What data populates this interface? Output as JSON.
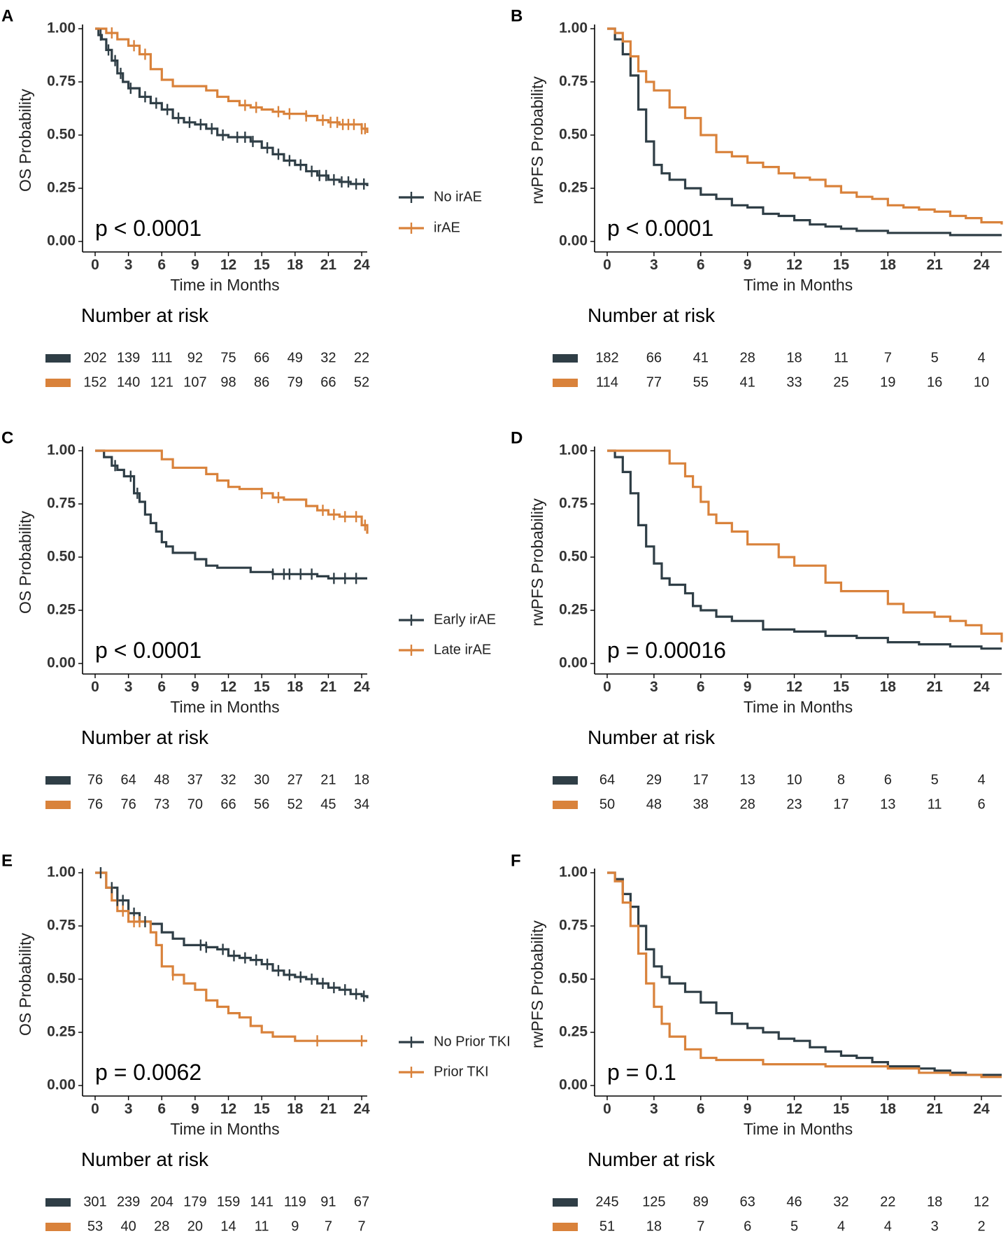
{
  "figure": {
    "colors": {
      "series1": "#2f3e46",
      "series2": "#d9823b",
      "axis": "#000000",
      "text": "#222222",
      "tick_text": "#333333"
    },
    "x_axis_label": "Time in Months",
    "risk_table_title": "Number at risk",
    "x_ticks": [
      0,
      3,
      6,
      9,
      12,
      15,
      18,
      21,
      24
    ],
    "y_ticks": [
      "0.00",
      "0.25",
      "0.50",
      "0.75",
      "1.00"
    ]
  },
  "chart_data": [
    {
      "panel": "A",
      "type": "line",
      "title": "",
      "xlabel": "Time in Months",
      "ylabel": "OS Probability",
      "xlim": [
        0,
        24.5
      ],
      "ylim": [
        0,
        1
      ],
      "pvalue": "p < 0.0001",
      "legend": [
        "No irAE",
        "irAE"
      ],
      "series": [
        {
          "name": "No irAE",
          "x": [
            0,
            0.3,
            0.6,
            1,
            1.5,
            2,
            2.5,
            3,
            4,
            5,
            6,
            7,
            8,
            9,
            10,
            11,
            12,
            13,
            14,
            15,
            16,
            17,
            18,
            19,
            20,
            21,
            22,
            23,
            24,
            24.5
          ],
          "y": [
            1,
            0.97,
            0.95,
            0.9,
            0.85,
            0.79,
            0.75,
            0.72,
            0.68,
            0.65,
            0.62,
            0.58,
            0.56,
            0.55,
            0.53,
            0.5,
            0.49,
            0.49,
            0.47,
            0.44,
            0.41,
            0.38,
            0.36,
            0.33,
            0.31,
            0.29,
            0.28,
            0.27,
            0.27,
            0.26
          ]
        },
        {
          "name": "irAE",
          "x": [
            0,
            1,
            2,
            3,
            4,
            5,
            6,
            7,
            8,
            9,
            10,
            11,
            12,
            13,
            14,
            15,
            16,
            17,
            18,
            19,
            20,
            21,
            22,
            23,
            24,
            24.5
          ],
          "y": [
            1,
            0.98,
            0.95,
            0.92,
            0.88,
            0.81,
            0.76,
            0.73,
            0.73,
            0.73,
            0.71,
            0.68,
            0.66,
            0.64,
            0.63,
            0.62,
            0.61,
            0.6,
            0.6,
            0.59,
            0.57,
            0.56,
            0.55,
            0.55,
            0.53,
            0.51
          ]
        }
      ],
      "censor": [
        {
          "series": "No irAE",
          "x": [
            0.5,
            1.2,
            1.8,
            2.3,
            3.2,
            4.5,
            5.5,
            6.5,
            7.5,
            8.5,
            9.5,
            10.5,
            11.5,
            12.8,
            13.5,
            14.2,
            15.5,
            16.5,
            17.5,
            18.5,
            19.5,
            20.2,
            20.8,
            21.5,
            22.2,
            22.8,
            23.5,
            24.2
          ]
        },
        {
          "series": "irAE",
          "x": [
            1.5,
            3.5,
            4.5,
            13.5,
            14.5,
            16.5,
            17.5,
            19,
            20.5,
            21.2,
            21.8,
            22.3,
            22.8,
            23.3,
            24,
            24.3
          ]
        }
      ],
      "risk": {
        "No irAE": [
          202,
          139,
          111,
          92,
          75,
          66,
          49,
          32,
          22
        ],
        "irAE": [
          152,
          140,
          121,
          107,
          98,
          86,
          79,
          66,
          52
        ]
      }
    },
    {
      "panel": "B",
      "type": "line",
      "title": "",
      "xlabel": "Time in Months",
      "ylabel": "rwPFS Probability",
      "xlim": [
        0,
        25.3
      ],
      "ylim": [
        0,
        1
      ],
      "pvalue": "p < 0.0001",
      "legend": [],
      "series": [
        {
          "name": "No irAE",
          "x": [
            0,
            0.5,
            1,
            1.5,
            2,
            2.5,
            3,
            3.5,
            4,
            5,
            6,
            7,
            8,
            9,
            10,
            11,
            12,
            13,
            14,
            15,
            16,
            17,
            18,
            20,
            22,
            24,
            25.3
          ],
          "y": [
            1,
            0.95,
            0.88,
            0.78,
            0.62,
            0.47,
            0.36,
            0.32,
            0.29,
            0.25,
            0.22,
            0.2,
            0.17,
            0.16,
            0.13,
            0.12,
            0.1,
            0.08,
            0.07,
            0.06,
            0.05,
            0.05,
            0.04,
            0.04,
            0.03,
            0.03,
            0.03
          ]
        },
        {
          "name": "irAE",
          "x": [
            0,
            0.5,
            1,
            1.5,
            2,
            2.5,
            3,
            4,
            5,
            6,
            7,
            8,
            9,
            10,
            11,
            12,
            13,
            14,
            15,
            16,
            17,
            18,
            19,
            20,
            21,
            22,
            23,
            24,
            25.3
          ],
          "y": [
            1,
            0.98,
            0.94,
            0.87,
            0.8,
            0.75,
            0.71,
            0.63,
            0.58,
            0.5,
            0.42,
            0.4,
            0.37,
            0.35,
            0.32,
            0.3,
            0.29,
            0.26,
            0.23,
            0.21,
            0.2,
            0.17,
            0.16,
            0.15,
            0.14,
            0.12,
            0.11,
            0.09,
            0.08
          ]
        }
      ],
      "risk": {
        "No irAE": [
          182,
          66,
          41,
          28,
          18,
          11,
          7,
          5,
          4
        ],
        "irAE": [
          114,
          77,
          55,
          41,
          33,
          25,
          19,
          16,
          10
        ]
      }
    },
    {
      "panel": "C",
      "type": "line",
      "title": "",
      "xlabel": "Time in Months",
      "ylabel": "OS Probability",
      "xlim": [
        0,
        24.5
      ],
      "ylim": [
        0,
        1
      ],
      "pvalue": "p < 0.0001",
      "legend": [
        "Early irAE",
        "Late irAE"
      ],
      "series": [
        {
          "name": "Early irAE",
          "x": [
            0,
            0.8,
            1.5,
            2,
            2.6,
            3.5,
            4,
            4.5,
            5,
            5.5,
            6,
            6.4,
            7,
            7.4,
            8,
            9,
            10,
            11,
            12,
            13,
            14,
            15,
            16,
            17,
            18,
            19,
            20,
            21,
            22,
            23,
            24,
            24.5
          ],
          "y": [
            1,
            0.97,
            0.93,
            0.91,
            0.88,
            0.8,
            0.76,
            0.7,
            0.66,
            0.62,
            0.57,
            0.55,
            0.52,
            0.52,
            0.52,
            0.49,
            0.46,
            0.45,
            0.45,
            0.45,
            0.43,
            0.43,
            0.42,
            0.42,
            0.42,
            0.42,
            0.41,
            0.4,
            0.4,
            0.4,
            0.4,
            0.4
          ]
        },
        {
          "name": "Late irAE",
          "x": [
            0,
            5,
            6,
            7,
            8,
            9,
            10,
            11,
            12,
            13,
            14,
            15,
            16,
            17,
            18,
            19,
            20,
            21,
            22,
            23,
            24,
            24.5
          ],
          "y": [
            1,
            1,
            0.96,
            0.92,
            0.92,
            0.92,
            0.89,
            0.86,
            0.83,
            0.82,
            0.82,
            0.8,
            0.78,
            0.77,
            0.77,
            0.74,
            0.72,
            0.7,
            0.69,
            0.69,
            0.65,
            0.61
          ]
        }
      ],
      "censor": [
        {
          "series": "Early irAE",
          "x": [
            1.8,
            3.2,
            3.8,
            16,
            17,
            17.5,
            18.5,
            19.5,
            21.5,
            22.5,
            23.5
          ]
        },
        {
          "series": "Late irAE",
          "x": [
            15,
            16.5,
            20.5,
            21.5,
            22.5,
            23.5,
            24.3
          ]
        }
      ],
      "risk": {
        "Early irAE": [
          76,
          64,
          48,
          37,
          32,
          30,
          27,
          21,
          18
        ],
        "Late irAE": [
          76,
          76,
          73,
          70,
          66,
          56,
          52,
          45,
          34
        ]
      }
    },
    {
      "panel": "D",
      "type": "line",
      "title": "",
      "xlabel": "Time in Months",
      "ylabel": "rwPFS Probability",
      "xlim": [
        0,
        25.3
      ],
      "ylim": [
        0,
        1
      ],
      "pvalue": "p = 0.00016",
      "legend": [],
      "series": [
        {
          "name": "Early irAE",
          "x": [
            0,
            0.5,
            1,
            1.5,
            2,
            2.5,
            3,
            3.5,
            4,
            5,
            5.5,
            6,
            7,
            8,
            9,
            10,
            12,
            14,
            16,
            18,
            20,
            22,
            24,
            25.3
          ],
          "y": [
            1,
            0.97,
            0.9,
            0.8,
            0.65,
            0.55,
            0.47,
            0.4,
            0.37,
            0.33,
            0.27,
            0.25,
            0.22,
            0.2,
            0.2,
            0.16,
            0.15,
            0.13,
            0.12,
            0.1,
            0.09,
            0.08,
            0.07,
            0.07
          ]
        },
        {
          "name": "Late irAE",
          "x": [
            0,
            2,
            3,
            4,
            5,
            5.5,
            6,
            6.5,
            7,
            8,
            9,
            10,
            11,
            12,
            13,
            14,
            15,
            16,
            17,
            18,
            19,
            20,
            21,
            22,
            23,
            24,
            25.3
          ],
          "y": [
            1,
            1,
            1,
            0.94,
            0.88,
            0.83,
            0.76,
            0.7,
            0.66,
            0.62,
            0.56,
            0.56,
            0.5,
            0.46,
            0.46,
            0.38,
            0.34,
            0.34,
            0.34,
            0.28,
            0.24,
            0.24,
            0.22,
            0.2,
            0.18,
            0.14,
            0.1
          ]
        }
      ],
      "risk": {
        "Early irAE": [
          64,
          29,
          17,
          13,
          10,
          8,
          6,
          5,
          4
        ],
        "Late irAE": [
          50,
          48,
          38,
          28,
          23,
          17,
          13,
          11,
          6
        ]
      }
    },
    {
      "panel": "E",
      "type": "line",
      "title": "",
      "xlabel": "Time in Months",
      "ylabel": "OS Probability",
      "xlim": [
        0,
        24.5
      ],
      "ylim": [
        0,
        1
      ],
      "pvalue": "p = 0.0062",
      "legend": [
        "No Prior TKI",
        "Prior TKI"
      ],
      "series": [
        {
          "name": "No Prior TKI",
          "x": [
            0,
            1,
            2,
            3,
            4,
            5,
            6,
            7,
            8,
            9,
            10,
            11,
            12,
            13,
            14,
            15,
            16,
            17,
            18,
            19,
            20,
            21,
            22,
            23,
            24,
            24.5
          ],
          "y": [
            1,
            0.93,
            0.87,
            0.81,
            0.77,
            0.76,
            0.72,
            0.69,
            0.66,
            0.66,
            0.65,
            0.64,
            0.61,
            0.6,
            0.59,
            0.57,
            0.54,
            0.52,
            0.51,
            0.5,
            0.48,
            0.46,
            0.45,
            0.43,
            0.42,
            0.41
          ]
        },
        {
          "name": "Prior TKI",
          "x": [
            0,
            1,
            1.5,
            2,
            3,
            4,
            5,
            5.5,
            6,
            7,
            8,
            9,
            10,
            11,
            12,
            13,
            14,
            15,
            16,
            17,
            18,
            19,
            20,
            21,
            22,
            23,
            24,
            24.5
          ],
          "y": [
            1,
            0.93,
            0.87,
            0.82,
            0.77,
            0.77,
            0.72,
            0.66,
            0.56,
            0.52,
            0.48,
            0.45,
            0.4,
            0.37,
            0.34,
            0.32,
            0.28,
            0.25,
            0.23,
            0.23,
            0.21,
            0.21,
            0.21,
            0.21,
            0.21,
            0.21,
            0.21,
            0.21
          ]
        }
      ],
      "censor": [
        {
          "series": "No Prior TKI",
          "x": [
            0.5,
            1.5,
            2,
            2.5,
            3.5,
            4.5,
            9.5,
            10,
            11.5,
            12.5,
            13.5,
            14.5,
            15.5,
            16.5,
            17.5,
            18.5,
            19.5,
            20.5,
            21.5,
            22.5,
            23.5,
            24.2
          ]
        },
        {
          "series": "Prior TKI",
          "x": [
            2.5,
            3.5,
            4,
            7,
            20,
            24
          ]
        }
      ],
      "risk": {
        "No Prior TKI": [
          301,
          239,
          204,
          179,
          159,
          141,
          119,
          91,
          67
        ],
        "Prior TKI": [
          53,
          40,
          28,
          20,
          14,
          11,
          9,
          7,
          7
        ]
      }
    },
    {
      "panel": "F",
      "type": "line",
      "title": "",
      "xlabel": "Time in Months",
      "ylabel": "rwPFS Probability",
      "xlim": [
        0,
        25.3
      ],
      "ylim": [
        0,
        1
      ],
      "pvalue": "p = 0.1",
      "legend": [],
      "series": [
        {
          "name": "No Prior TKI",
          "x": [
            0,
            0.5,
            1,
            1.5,
            2,
            2.5,
            3,
            3.5,
            4,
            5,
            6,
            7,
            8,
            9,
            10,
            11,
            12,
            13,
            14,
            15,
            16,
            17,
            18,
            19,
            20,
            21,
            22,
            23,
            24,
            25.3
          ],
          "y": [
            1,
            0.97,
            0.9,
            0.84,
            0.75,
            0.64,
            0.56,
            0.51,
            0.48,
            0.44,
            0.39,
            0.34,
            0.29,
            0.27,
            0.25,
            0.22,
            0.21,
            0.18,
            0.16,
            0.14,
            0.13,
            0.11,
            0.09,
            0.09,
            0.08,
            0.07,
            0.06,
            0.05,
            0.05,
            0.05
          ]
        },
        {
          "name": "Prior TKI",
          "x": [
            0,
            0.5,
            1,
            1.5,
            2,
            2.5,
            3,
            3.5,
            4,
            5,
            6,
            7,
            8,
            9,
            10,
            12,
            14,
            16,
            18,
            20,
            22,
            24,
            25.3
          ],
          "y": [
            1,
            0.96,
            0.86,
            0.75,
            0.62,
            0.48,
            0.37,
            0.29,
            0.23,
            0.17,
            0.13,
            0.12,
            0.12,
            0.12,
            0.1,
            0.1,
            0.09,
            0.09,
            0.08,
            0.06,
            0.05,
            0.04,
            0.04
          ]
        }
      ],
      "risk": {
        "No Prior TKI": [
          245,
          125,
          89,
          63,
          46,
          32,
          22,
          18,
          12
        ],
        "Prior TKI": [
          51,
          18,
          7,
          6,
          5,
          4,
          4,
          3,
          2
        ]
      }
    }
  ]
}
